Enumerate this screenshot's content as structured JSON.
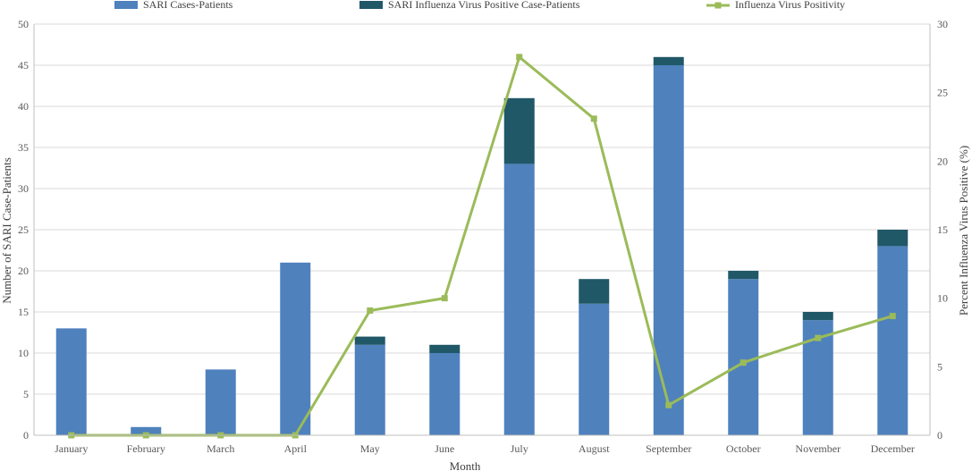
{
  "chart_data": {
    "type": "bar",
    "stacked": true,
    "categories": [
      "January",
      "February",
      "March",
      "April",
      "May",
      "June",
      "July",
      "August",
      "September",
      "October",
      "November",
      "December"
    ],
    "series": [
      {
        "name": "SARI Cases-Patients",
        "kind": "bar",
        "axis": "left",
        "color": "#4f81bd",
        "values": [
          13,
          1,
          8,
          21,
          11,
          10,
          33,
          16,
          45,
          19,
          14,
          23
        ]
      },
      {
        "name": "SARI Influenza Virus Positive Case-Patients",
        "kind": "bar",
        "axis": "left",
        "color": "#215868",
        "values": [
          0,
          0,
          0,
          0,
          1,
          1,
          8,
          3,
          1,
          1,
          1,
          2
        ]
      },
      {
        "name": "Influenza Virus Positivity",
        "kind": "line",
        "axis": "right",
        "color": "#9bbb59",
        "marker": "square",
        "values": [
          0,
          0,
          0,
          0,
          9.1,
          10,
          27.6,
          23.1,
          2.2,
          5.3,
          7.1,
          8.7
        ]
      }
    ],
    "xlabel": "Month",
    "ylabel": "Number of SARI Case-Patients",
    "y2label": "Percent Influenza Virus Positive (%)",
    "ylim": [
      0,
      50
    ],
    "yticks": [
      "0",
      "5",
      "10",
      "15",
      "20",
      "25",
      "30",
      "35",
      "40",
      "45",
      "50"
    ],
    "y2lim": [
      0,
      30
    ],
    "y2ticks": [
      "0",
      "5",
      "10",
      "15",
      "20",
      "25",
      "30"
    ],
    "grid": true,
    "legend_position": "top"
  }
}
